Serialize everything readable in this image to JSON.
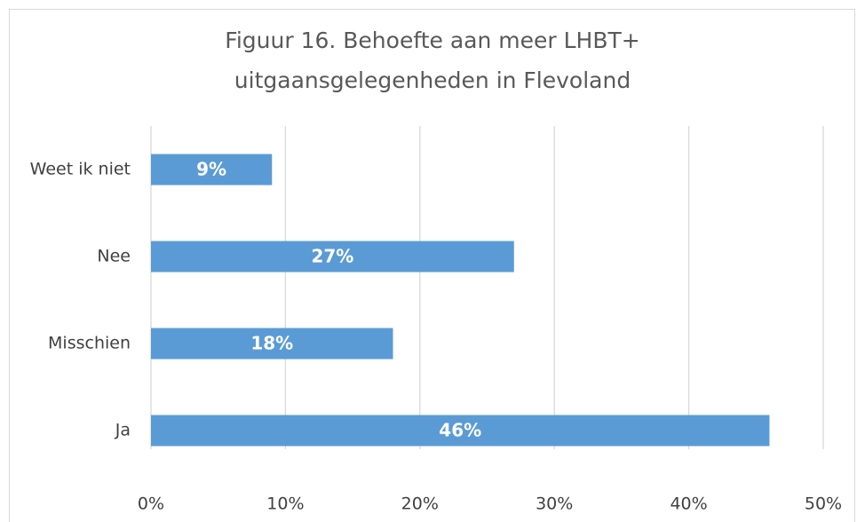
{
  "chart_data": {
    "type": "barh",
    "title": [
      "Figuur 16.  Behoefte aan meer LHBT+",
      "uitgaansgelegenheden in Flevoland"
    ],
    "categories": [
      "Weet ik niet",
      "Nee",
      "Misschien",
      "Ja"
    ],
    "values": [
      9,
      27,
      18,
      46
    ],
    "value_labels": [
      "9%",
      "27%",
      "18%",
      "46%"
    ],
    "color": "#5b9bd5",
    "xlim": [
      0,
      50
    ],
    "xticks": [
      {
        "value": 0,
        "label": "0%"
      },
      {
        "value": 10,
        "label": "10%"
      },
      {
        "value": 20,
        "label": "20%"
      },
      {
        "value": 30,
        "label": "30%"
      },
      {
        "value": 40,
        "label": "40%"
      },
      {
        "value": 50,
        "label": "50%"
      }
    ],
    "grid": true
  }
}
